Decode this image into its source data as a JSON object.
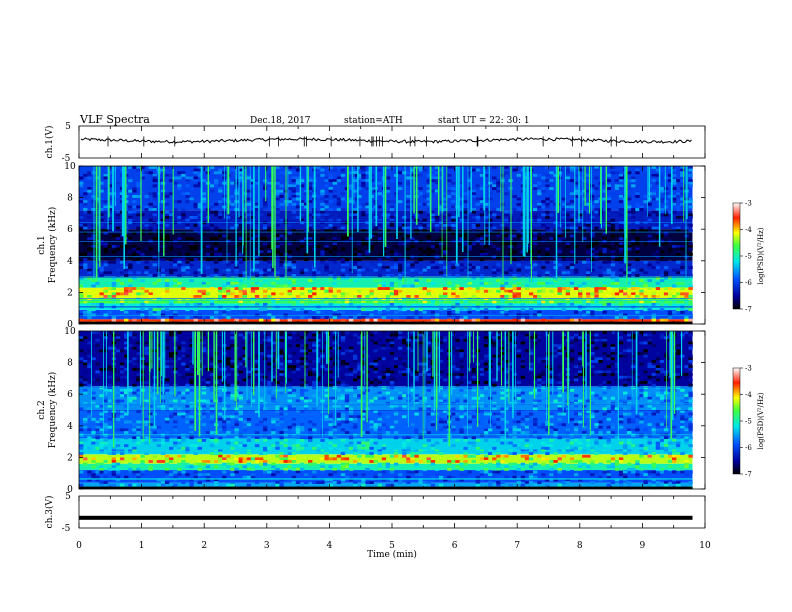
{
  "header": {
    "title": "VLF  Spectra",
    "date": "Dec.18, 2017",
    "station": "station=ATH",
    "start": "start  UT  =   22: 30: 1"
  },
  "chart_data": [
    {
      "type": "line",
      "panel": "ch1-waveform",
      "ylabel": "ch.1(V)",
      "ylim": [
        -5,
        5
      ],
      "ytick_labels": [
        "5",
        "-5"
      ],
      "trace_level": 0.5,
      "color": "#000000"
    },
    {
      "type": "heatmap",
      "panel": "ch1-spectrogram",
      "ylabel": "ch.1\nFrequency (kHz)",
      "xlim": [
        0,
        9.8
      ],
      "ylim": [
        0,
        10
      ],
      "ytick_labels": [
        "0",
        "2",
        "4",
        "6",
        "8",
        "10"
      ],
      "colorbar": {
        "label": "log(PSD)(V²/Hz)",
        "range": [
          -7,
          -3
        ],
        "tick_labels": [
          "-3",
          "-4",
          "-5",
          "-6",
          "-7"
        ]
      },
      "bands": [
        {
          "f_lo": 0.0,
          "f_hi": 0.3,
          "level": -3.6
        },
        {
          "f_lo": 0.3,
          "f_hi": 0.9,
          "level": -5.9
        },
        {
          "f_lo": 0.9,
          "f_hi": 1.3,
          "level": -5.2
        },
        {
          "f_lo": 1.3,
          "f_hi": 1.6,
          "level": -4.6
        },
        {
          "f_lo": 1.6,
          "f_hi": 2.3,
          "level": -4.2
        },
        {
          "f_lo": 2.3,
          "f_hi": 3.0,
          "level": -5.0
        },
        {
          "f_lo": 3.0,
          "f_hi": 4.0,
          "level": -6.2
        },
        {
          "f_lo": 4.0,
          "f_hi": 6.0,
          "level": -6.8
        },
        {
          "f_lo": 6.0,
          "f_hi": 7.2,
          "level": -6.3
        },
        {
          "f_lo": 7.2,
          "f_hi": 10.0,
          "level": -6.0
        }
      ]
    },
    {
      "type": "heatmap",
      "panel": "ch2-spectrogram",
      "ylabel": "ch.2\nFrequency (kHz)",
      "xlim": [
        0,
        9.8
      ],
      "ylim": [
        0,
        10
      ],
      "ytick_labels": [
        "0",
        "2",
        "4",
        "6",
        "8",
        "10"
      ],
      "colorbar": {
        "label": "log(PSD)(V²/Hz)",
        "range": [
          -7,
          -3
        ],
        "tick_labels": [
          "-3",
          "-4",
          "-5",
          "-6",
          "-7"
        ]
      },
      "bands": [
        {
          "f_lo": 0.0,
          "f_hi": 0.4,
          "level": -5.5
        },
        {
          "f_lo": 0.4,
          "f_hi": 1.2,
          "level": -5.9
        },
        {
          "f_lo": 1.2,
          "f_hi": 1.6,
          "level": -5.0
        },
        {
          "f_lo": 1.6,
          "f_hi": 2.2,
          "level": -4.3
        },
        {
          "f_lo": 2.2,
          "f_hi": 3.2,
          "level": -5.3
        },
        {
          "f_lo": 3.2,
          "f_hi": 5.0,
          "level": -5.8
        },
        {
          "f_lo": 5.0,
          "f_hi": 6.5,
          "level": -5.6
        },
        {
          "f_lo": 6.5,
          "f_hi": 10.0,
          "level": -6.5
        }
      ]
    },
    {
      "type": "line",
      "panel": "ch3-waveform",
      "ylabel": "ch.3(V)",
      "xlabel": "Time  (min)",
      "xlim": [
        0,
        10
      ],
      "ylim": [
        -5,
        5
      ],
      "ytick_labels": [
        "5",
        "-5"
      ],
      "xtick_labels": [
        "0",
        "1",
        "2",
        "3",
        "4",
        "5",
        "6",
        "7",
        "8",
        "9",
        "10"
      ],
      "trace_level": -1.8,
      "color": "#000000"
    }
  ]
}
